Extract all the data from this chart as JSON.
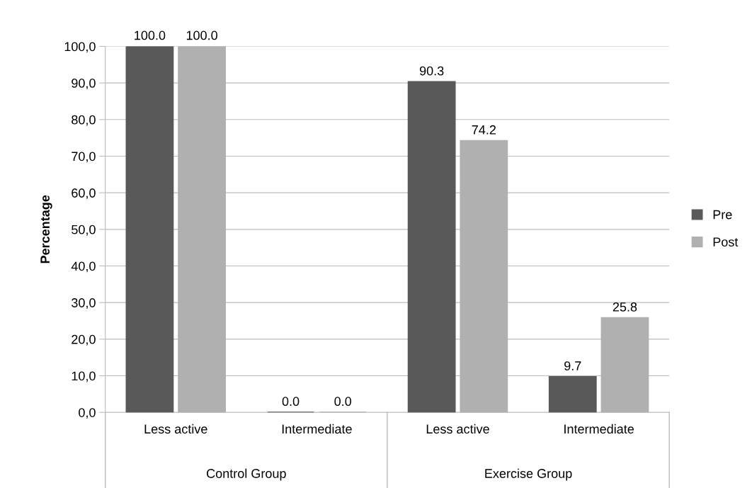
{
  "chart_data": {
    "type": "bar",
    "ylabel": "Percentage",
    "categories": [
      "Less active",
      "Intermediate",
      "Less active",
      "Intermediate"
    ],
    "series": [
      {
        "name": "Pre",
        "color": "#595959",
        "values": [
          100.0,
          0.0,
          90.3,
          9.7
        ],
        "value_labels": [
          "100.0",
          "0.0",
          "90.3",
          "9.7"
        ]
      },
      {
        "name": "Post",
        "color": "#b0b0b0",
        "values": [
          100.0,
          0.0,
          74.2,
          25.8
        ],
        "value_labels": [
          "100.0",
          "0.0",
          "74.2",
          "25.8"
        ]
      }
    ],
    "ylim": [
      0,
      100
    ],
    "yticks": [
      {
        "value": 0,
        "label": "0,0"
      },
      {
        "value": 10,
        "label": "10,0"
      },
      {
        "value": 20,
        "label": "20,0"
      },
      {
        "value": 30,
        "label": "30,0"
      },
      {
        "value": 40,
        "label": "40,0"
      },
      {
        "value": 50,
        "label": "50,0"
      },
      {
        "value": 60,
        "label": "60,0"
      },
      {
        "value": 70,
        "label": "70,0"
      },
      {
        "value": 80,
        "label": "80,0"
      },
      {
        "value": 90,
        "label": "90,0"
      },
      {
        "value": 100,
        "label": "100,0"
      }
    ],
    "grid": "y",
    "legend": "right",
    "annotations": [
      "Control Group",
      "Exercise Group"
    ]
  }
}
